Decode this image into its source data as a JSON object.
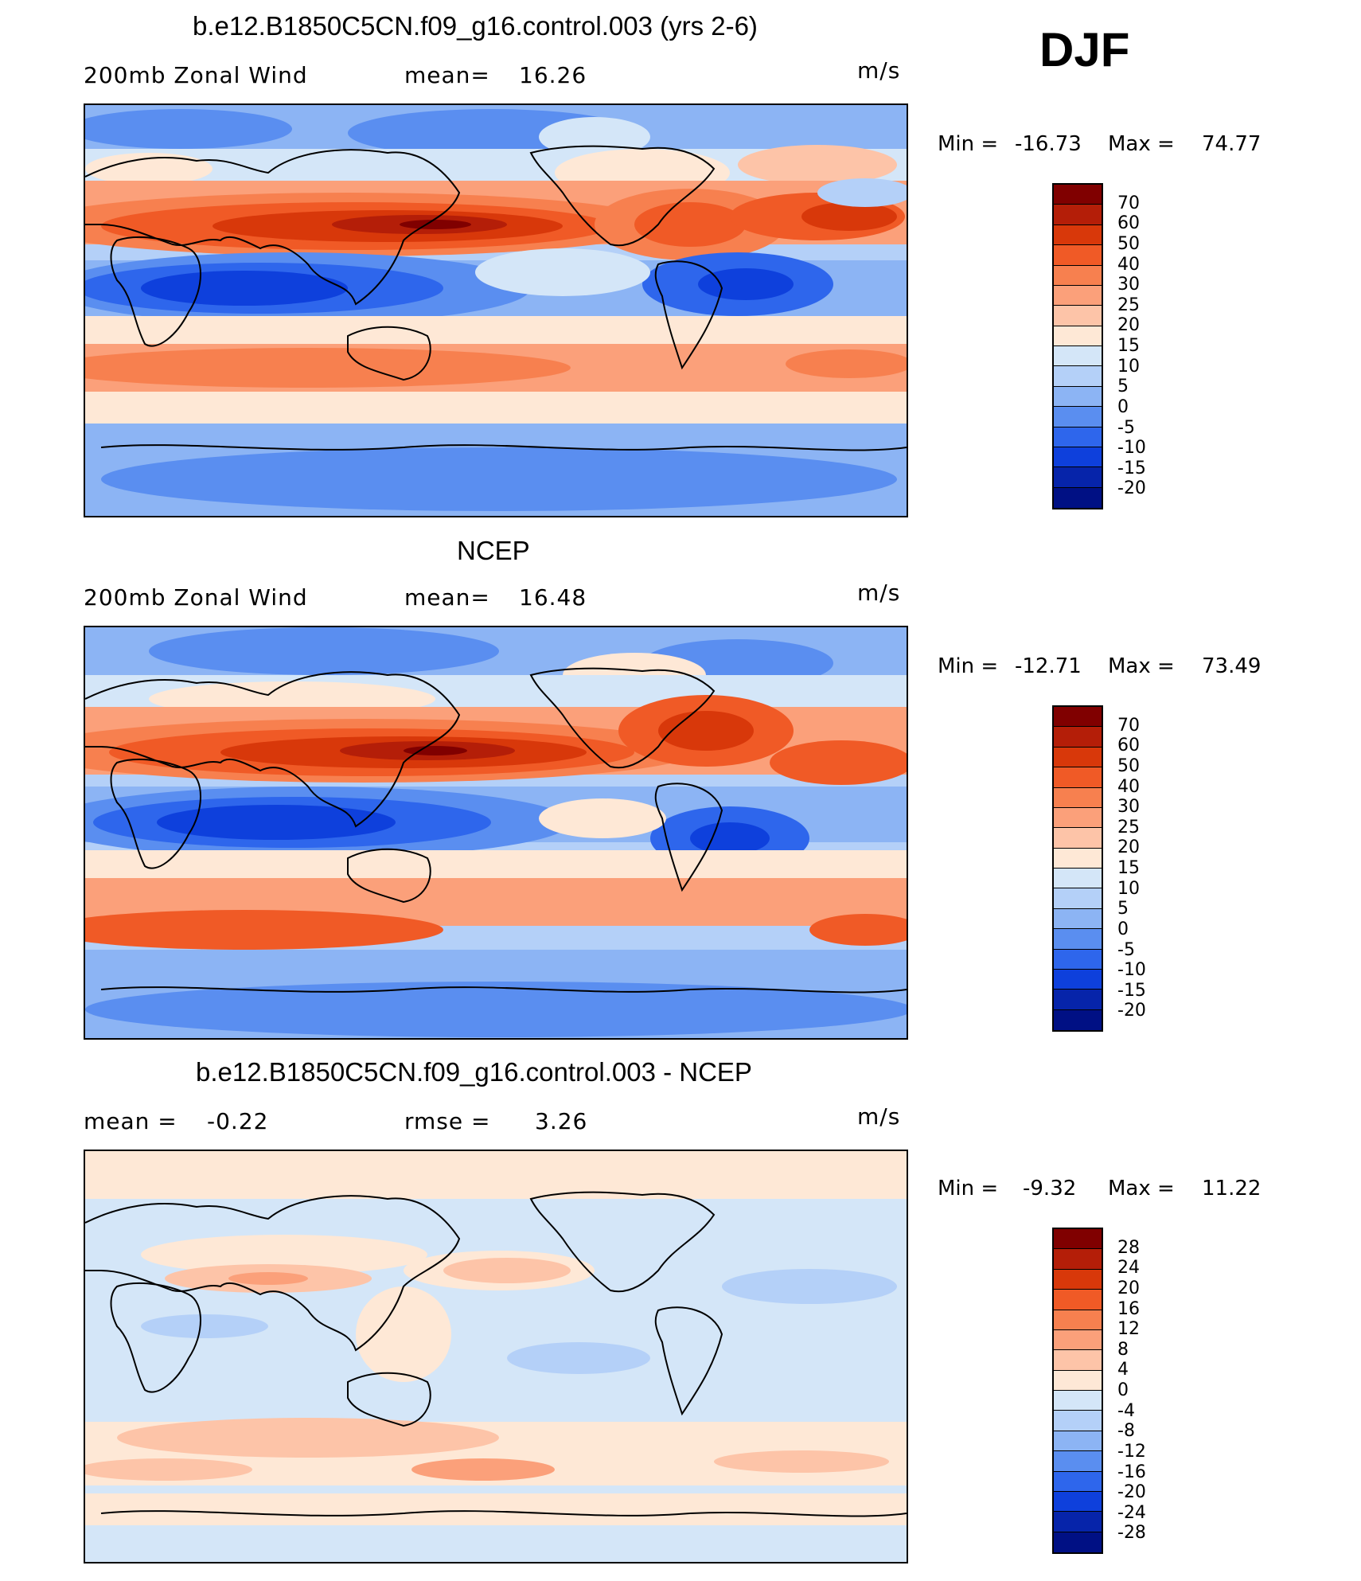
{
  "season": "DJF",
  "panels": [
    {
      "title": "b.e12.B1850C5CN.f09_g16.control.003 (yrs 2-6)",
      "left_label": "200mb Zonal Wind",
      "stat_label": "mean=",
      "stat_value": "16.26",
      "units": "m/s",
      "min_label": "Min =",
      "min_value": "-16.73",
      "max_label": "Max =",
      "max_value": "74.77",
      "levels": [
        "70",
        "60",
        "50",
        "40",
        "30",
        "25",
        "20",
        "15",
        "10",
        "5",
        "0",
        "-5",
        "-10",
        "-15",
        "-20"
      ],
      "colors": [
        "#800000",
        "#b41e08",
        "#d8380a",
        "#f05a26",
        "#f7804f",
        "#fba07a",
        "#fdc4a8",
        "#fee8d6",
        "#d4e6f8",
        "#b4d0f8",
        "#8cb4f4",
        "#5a8ef0",
        "#2e66ec",
        "#0e40dc",
        "#0624aa",
        "#001084"
      ]
    },
    {
      "title": "NCEP",
      "left_label": "200mb Zonal Wind",
      "stat_label": "mean=",
      "stat_value": "16.48",
      "units": "m/s",
      "min_label": "Min =",
      "min_value": "-12.71",
      "max_label": "Max =",
      "max_value": "73.49",
      "levels": [
        "70",
        "60",
        "50",
        "40",
        "30",
        "25",
        "20",
        "15",
        "10",
        "5",
        "0",
        "-5",
        "-10",
        "-15",
        "-20"
      ],
      "colors": [
        "#800000",
        "#b41e08",
        "#d8380a",
        "#f05a26",
        "#f7804f",
        "#fba07a",
        "#fdc4a8",
        "#fee8d6",
        "#d4e6f8",
        "#b4d0f8",
        "#8cb4f4",
        "#5a8ef0",
        "#2e66ec",
        "#0e40dc",
        "#0624aa",
        "#001084"
      ]
    },
    {
      "title": "b.e12.B1850C5CN.f09_g16.control.003 - NCEP",
      "left_label": "mean =",
      "left_value": "-0.22",
      "stat_label": "rmse =",
      "stat_value": "3.26",
      "units": "m/s",
      "min_label": "Min =",
      "min_value": "-9.32",
      "max_label": "Max =",
      "max_value": "11.22",
      "levels": [
        "28",
        "24",
        "20",
        "16",
        "12",
        "8",
        "4",
        "0",
        "-4",
        "-8",
        "-12",
        "-16",
        "-20",
        "-24",
        "-28"
      ],
      "colors": [
        "#800000",
        "#b41e08",
        "#d8380a",
        "#f05a26",
        "#f7804f",
        "#fba07a",
        "#fdc4a8",
        "#fee8d6",
        "#d4e6f8",
        "#b4d0f8",
        "#8cb4f4",
        "#5a8ef0",
        "#2e66ec",
        "#0e40dc",
        "#0624aa",
        "#001084"
      ]
    }
  ]
}
